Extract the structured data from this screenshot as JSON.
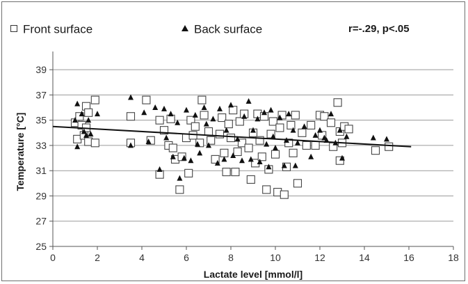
{
  "chart_data": {
    "type": "scatter",
    "title": "",
    "annotation": "r=-.29, p<.05",
    "xlabel": "Lactate level [mmol/l]",
    "ylabel": "Temperature [°C]",
    "xlim": [
      0,
      18
    ],
    "ylim": [
      25,
      40
    ],
    "xticks": [
      0,
      2,
      4,
      6,
      8,
      10,
      12,
      14,
      16,
      18
    ],
    "yticks": [
      25,
      27,
      29,
      31,
      33,
      35,
      37,
      39
    ],
    "grid": "horizontal",
    "legend_position": "top",
    "trendline": {
      "x": [
        0,
        16.1
      ],
      "y": [
        34.5,
        32.9
      ]
    },
    "series": [
      {
        "name": "Front surface",
        "marker": "square",
        "points": [
          [
            1.0,
            34.8
          ],
          [
            1.1,
            33.5
          ],
          [
            1.2,
            35.3
          ],
          [
            1.3,
            34.6
          ],
          [
            1.4,
            33.8
          ],
          [
            1.5,
            36.1
          ],
          [
            1.5,
            34.4
          ],
          [
            1.6,
            35.6
          ],
          [
            1.6,
            33.3
          ],
          [
            1.9,
            36.6
          ],
          [
            1.9,
            33.2
          ],
          [
            3.5,
            35.3
          ],
          [
            3.5,
            33.2
          ],
          [
            4.2,
            36.6
          ],
          [
            4.4,
            33.4
          ],
          [
            4.8,
            35.0
          ],
          [
            4.8,
            30.7
          ],
          [
            5.0,
            34.2
          ],
          [
            5.2,
            33.0
          ],
          [
            5.3,
            35.1
          ],
          [
            5.4,
            32.8
          ],
          [
            5.5,
            31.9
          ],
          [
            5.7,
            29.5
          ],
          [
            5.8,
            32.1
          ],
          [
            6.0,
            33.6
          ],
          [
            6.1,
            30.8
          ],
          [
            6.2,
            35.0
          ],
          [
            6.3,
            33.8
          ],
          [
            6.4,
            34.5
          ],
          [
            6.6,
            33.2
          ],
          [
            6.7,
            36.6
          ],
          [
            6.8,
            35.4
          ],
          [
            7.0,
            34.1
          ],
          [
            7.1,
            33.4
          ],
          [
            7.3,
            31.9
          ],
          [
            7.5,
            33.9
          ],
          [
            7.6,
            35.2
          ],
          [
            7.7,
            32.4
          ],
          [
            7.8,
            30.9
          ],
          [
            7.9,
            34.7
          ],
          [
            8.0,
            33.6
          ],
          [
            8.1,
            35.8
          ],
          [
            8.2,
            30.9
          ],
          [
            8.3,
            32.5
          ],
          [
            8.4,
            34.9
          ],
          [
            8.5,
            33.2
          ],
          [
            8.6,
            35.5
          ],
          [
            8.8,
            32.8
          ],
          [
            8.9,
            30.3
          ],
          [
            9.0,
            34.0
          ],
          [
            9.1,
            31.6
          ],
          [
            9.2,
            35.5
          ],
          [
            9.3,
            33.4
          ],
          [
            9.4,
            32.1
          ],
          [
            9.5,
            35.3
          ],
          [
            9.6,
            29.5
          ],
          [
            9.7,
            31.1
          ],
          [
            9.8,
            33.9
          ],
          [
            9.9,
            34.9
          ],
          [
            10.0,
            32.3
          ],
          [
            10.1,
            29.3
          ],
          [
            10.2,
            34.4
          ],
          [
            10.3,
            35.4
          ],
          [
            10.4,
            29.1
          ],
          [
            10.5,
            31.3
          ],
          [
            10.6,
            33.2
          ],
          [
            10.7,
            34.6
          ],
          [
            10.8,
            32.4
          ],
          [
            10.9,
            35.4
          ],
          [
            11.0,
            30.0
          ],
          [
            11.2,
            34.0
          ],
          [
            11.4,
            33.0
          ],
          [
            11.6,
            34.6
          ],
          [
            11.8,
            33.0
          ],
          [
            12.0,
            35.4
          ],
          [
            12.1,
            33.8
          ],
          [
            12.2,
            35.3
          ],
          [
            12.5,
            34.8
          ],
          [
            12.6,
            32.9
          ],
          [
            12.8,
            36.4
          ],
          [
            12.9,
            34.1
          ],
          [
            12.9,
            31.8
          ],
          [
            13.0,
            33.2
          ],
          [
            13.1,
            34.5
          ],
          [
            13.3,
            34.3
          ],
          [
            14.5,
            32.6
          ],
          [
            15.1,
            32.9
          ]
        ]
      },
      {
        "name": "Back surface",
        "marker": "triangle",
        "points": [
          [
            1.0,
            35.0
          ],
          [
            1.1,
            36.3
          ],
          [
            1.1,
            32.9
          ],
          [
            1.3,
            35.5
          ],
          [
            1.4,
            34.1
          ],
          [
            1.5,
            33.8
          ],
          [
            1.6,
            35.0
          ],
          [
            1.7,
            33.9
          ],
          [
            2.0,
            35.5
          ],
          [
            3.5,
            36.8
          ],
          [
            3.5,
            33.0
          ],
          [
            4.1,
            35.6
          ],
          [
            4.3,
            33.3
          ],
          [
            4.6,
            36.0
          ],
          [
            4.8,
            31.1
          ],
          [
            5.0,
            35.9
          ],
          [
            5.1,
            33.6
          ],
          [
            5.3,
            35.5
          ],
          [
            5.4,
            32.1
          ],
          [
            5.6,
            34.8
          ],
          [
            5.7,
            30.4
          ],
          [
            5.9,
            32.0
          ],
          [
            6.0,
            35.8
          ],
          [
            6.2,
            31.8
          ],
          [
            6.4,
            35.4
          ],
          [
            6.5,
            33.1
          ],
          [
            6.6,
            32.4
          ],
          [
            6.8,
            36.0
          ],
          [
            6.9,
            34.7
          ],
          [
            7.0,
            33.0
          ],
          [
            7.2,
            35.1
          ],
          [
            7.4,
            31.6
          ],
          [
            7.5,
            35.9
          ],
          [
            7.7,
            31.9
          ],
          [
            7.8,
            34.2
          ],
          [
            8.0,
            36.2
          ],
          [
            8.1,
            32.2
          ],
          [
            8.3,
            33.5
          ],
          [
            8.5,
            31.8
          ],
          [
            8.6,
            35.3
          ],
          [
            8.8,
            36.5
          ],
          [
            8.9,
            31.9
          ],
          [
            9.0,
            34.2
          ],
          [
            9.2,
            35.1
          ],
          [
            9.3,
            31.7
          ],
          [
            9.5,
            35.6
          ],
          [
            9.6,
            33.1
          ],
          [
            9.7,
            31.3
          ],
          [
            9.8,
            35.8
          ],
          [
            9.9,
            33.7
          ],
          [
            10.0,
            32.8
          ],
          [
            10.2,
            35.2
          ],
          [
            10.4,
            31.4
          ],
          [
            10.5,
            33.4
          ],
          [
            10.6,
            35.5
          ],
          [
            10.8,
            34.2
          ],
          [
            10.9,
            31.4
          ],
          [
            11.0,
            33.2
          ],
          [
            11.3,
            34.5
          ],
          [
            11.6,
            32.1
          ],
          [
            11.8,
            33.8
          ],
          [
            12.0,
            34.2
          ],
          [
            12.2,
            33.6
          ],
          [
            12.3,
            33.4
          ],
          [
            12.5,
            35.5
          ],
          [
            12.7,
            33.2
          ],
          [
            12.9,
            34.2
          ],
          [
            13.0,
            32.0
          ],
          [
            13.2,
            33.7
          ],
          [
            14.4,
            33.6
          ],
          [
            15.0,
            33.5
          ]
        ]
      }
    ]
  }
}
